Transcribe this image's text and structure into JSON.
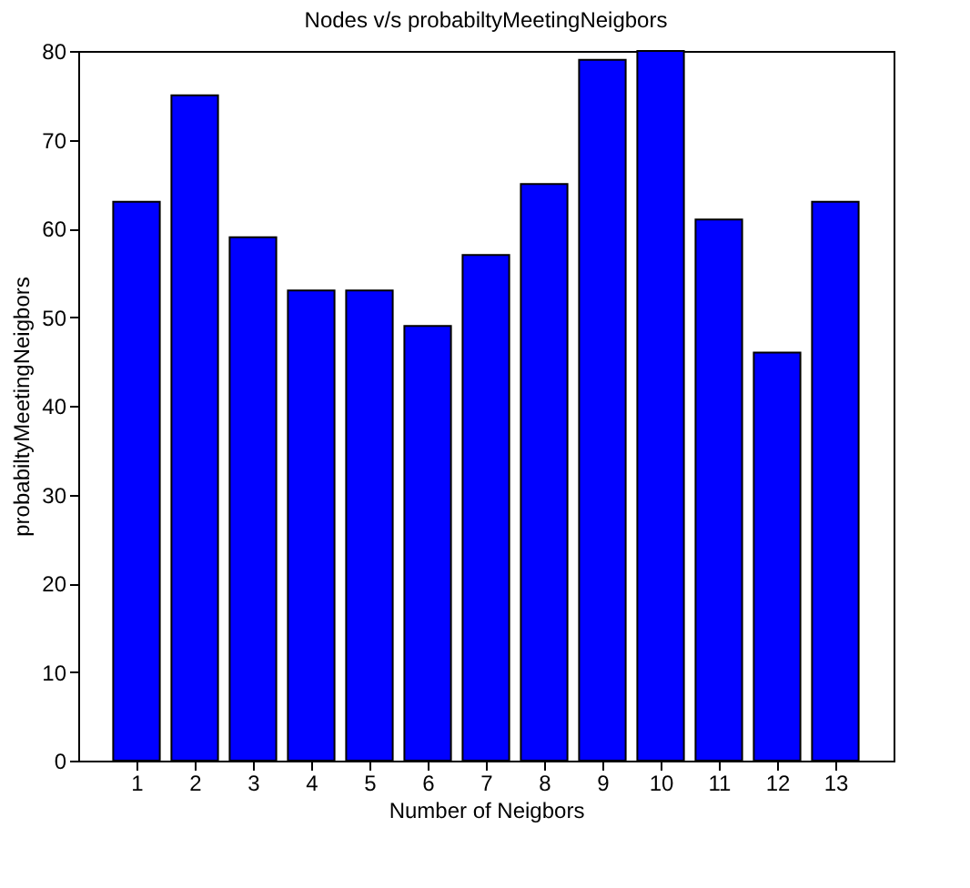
{
  "chart_data": {
    "type": "bar",
    "title": "Nodes v/s probabiltyMeetingNeigbors",
    "xlabel": "Number of Neigbors",
    "ylabel": "probabiltyMeetingNeigbors",
    "x": [
      1,
      2,
      3,
      4,
      5,
      6,
      7,
      8,
      9,
      10,
      11,
      12,
      13
    ],
    "values": [
      63,
      75,
      59,
      53,
      53,
      49,
      57,
      65,
      79,
      80,
      61,
      46,
      63
    ],
    "color": "#0000ff",
    "xlim": [
      0,
      14
    ],
    "xticks": [
      1,
      2,
      3,
      4,
      5,
      6,
      7,
      8,
      9,
      10,
      11,
      12,
      13
    ],
    "ylim": [
      0,
      80
    ],
    "yticks": [
      0,
      10,
      20,
      30,
      40,
      50,
      60,
      70,
      80
    ],
    "grid": false
  }
}
